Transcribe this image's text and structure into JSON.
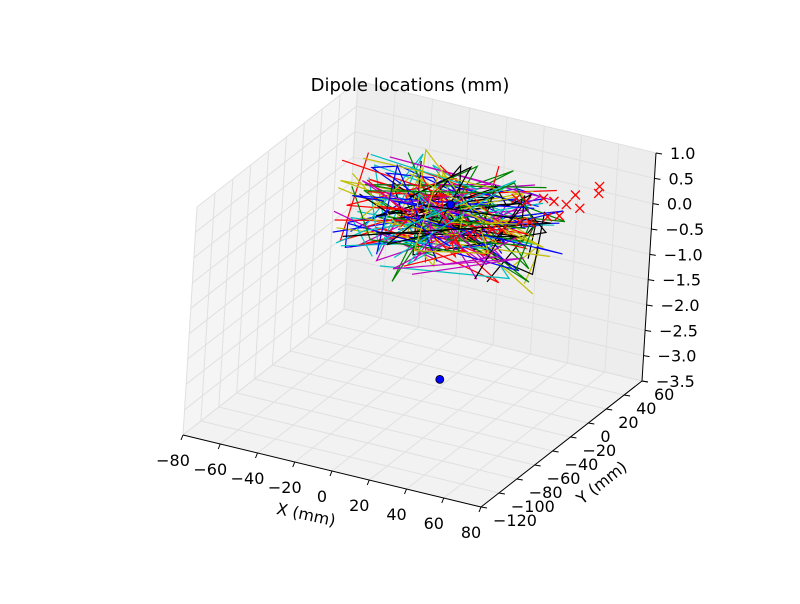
{
  "chart_data": {
    "type": "scatter3d",
    "title": "Dipole locations (mm)",
    "xlabel": "X (mm)",
    "ylabel": "Y (mm)",
    "zlabel": "",
    "x_ticks": [
      -80,
      -60,
      -40,
      -20,
      0,
      20,
      40,
      60,
      80
    ],
    "y_ticks": [
      -120,
      -100,
      -80,
      -60,
      -40,
      -20,
      0,
      20,
      40,
      60
    ],
    "z_ticks": [
      1.0,
      0.5,
      0.0,
      -0.5,
      -1.0,
      -1.5,
      -2.0,
      -2.5,
      -3.0,
      -3.5
    ],
    "x_tick_labels": [
      "−80",
      "−60",
      "−40",
      "−20",
      "0",
      "20",
      "40",
      "60",
      "80"
    ],
    "y_tick_labels": [
      "−120",
      "−100",
      "−80",
      "−60",
      "−40",
      "−20",
      "0",
      "20",
      "40",
      "60"
    ],
    "z_tick_labels": [
      "1.0",
      "0.5",
      "0.0",
      "−0.5",
      "−1.0",
      "−1.5",
      "−2.0",
      "−2.5",
      "−3.0",
      "−3.5"
    ],
    "xlim": [
      -80,
      80
    ],
    "ylim": [
      -120,
      60
    ],
    "zlim": [
      -3.5,
      1.0
    ],
    "grid": true,
    "series": [
      {
        "kind": "points",
        "marker": "circle",
        "color": "#0000ff",
        "points": [
          [
            0,
            0,
            0.1
          ],
          [
            0,
            0,
            -3.35
          ]
        ]
      },
      {
        "kind": "points",
        "marker": "x",
        "color": "#ff0000",
        "points": [
          [
            30,
            10,
            0.35
          ],
          [
            40,
            20,
            0.3
          ],
          [
            50,
            25,
            0.2
          ],
          [
            55,
            30,
            0.1
          ],
          [
            45,
            15,
            0.05
          ],
          [
            35,
            5,
            0.0
          ],
          [
            25,
            -5,
            -0.1
          ],
          [
            60,
            40,
            0.3
          ],
          [
            20,
            -10,
            -0.2
          ],
          [
            10,
            -15,
            -0.3
          ],
          [
            50,
            35,
            0.25
          ],
          [
            42,
            28,
            0.15
          ],
          [
            38,
            10,
            -0.05
          ],
          [
            28,
            0,
            -0.15
          ],
          [
            15,
            -8,
            -0.25
          ],
          [
            58,
            45,
            0.35
          ],
          [
            48,
            22,
            0.0
          ],
          [
            32,
            18,
            0.2
          ]
        ]
      },
      {
        "kind": "cloud",
        "palette": [
          "#ff0000",
          "#0000ff",
          "#00bfbf",
          "#008000",
          "#000000",
          "#bfbf00",
          "#bf00bf"
        ],
        "x_range": [
          -60,
          60
        ],
        "y_range": [
          -40,
          40
        ],
        "z_range": [
          -1.0,
          0.6
        ]
      }
    ]
  }
}
